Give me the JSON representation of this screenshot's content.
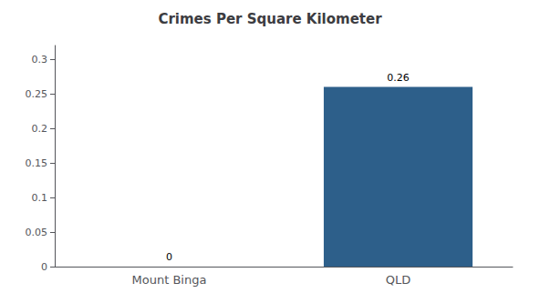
{
  "chart_data": {
    "type": "bar",
    "title": "Crimes Per Square Kilometer",
    "categories": [
      "Mount Binga",
      "QLD"
    ],
    "values": [
      0,
      0.26
    ],
    "color": "#2d5f8a",
    "ylim": [
      0,
      0.32
    ],
    "yticks": [
      0,
      0.05,
      0.1,
      0.15,
      0.2,
      0.25,
      0.3
    ],
    "grid": false,
    "data_labels": true
  }
}
